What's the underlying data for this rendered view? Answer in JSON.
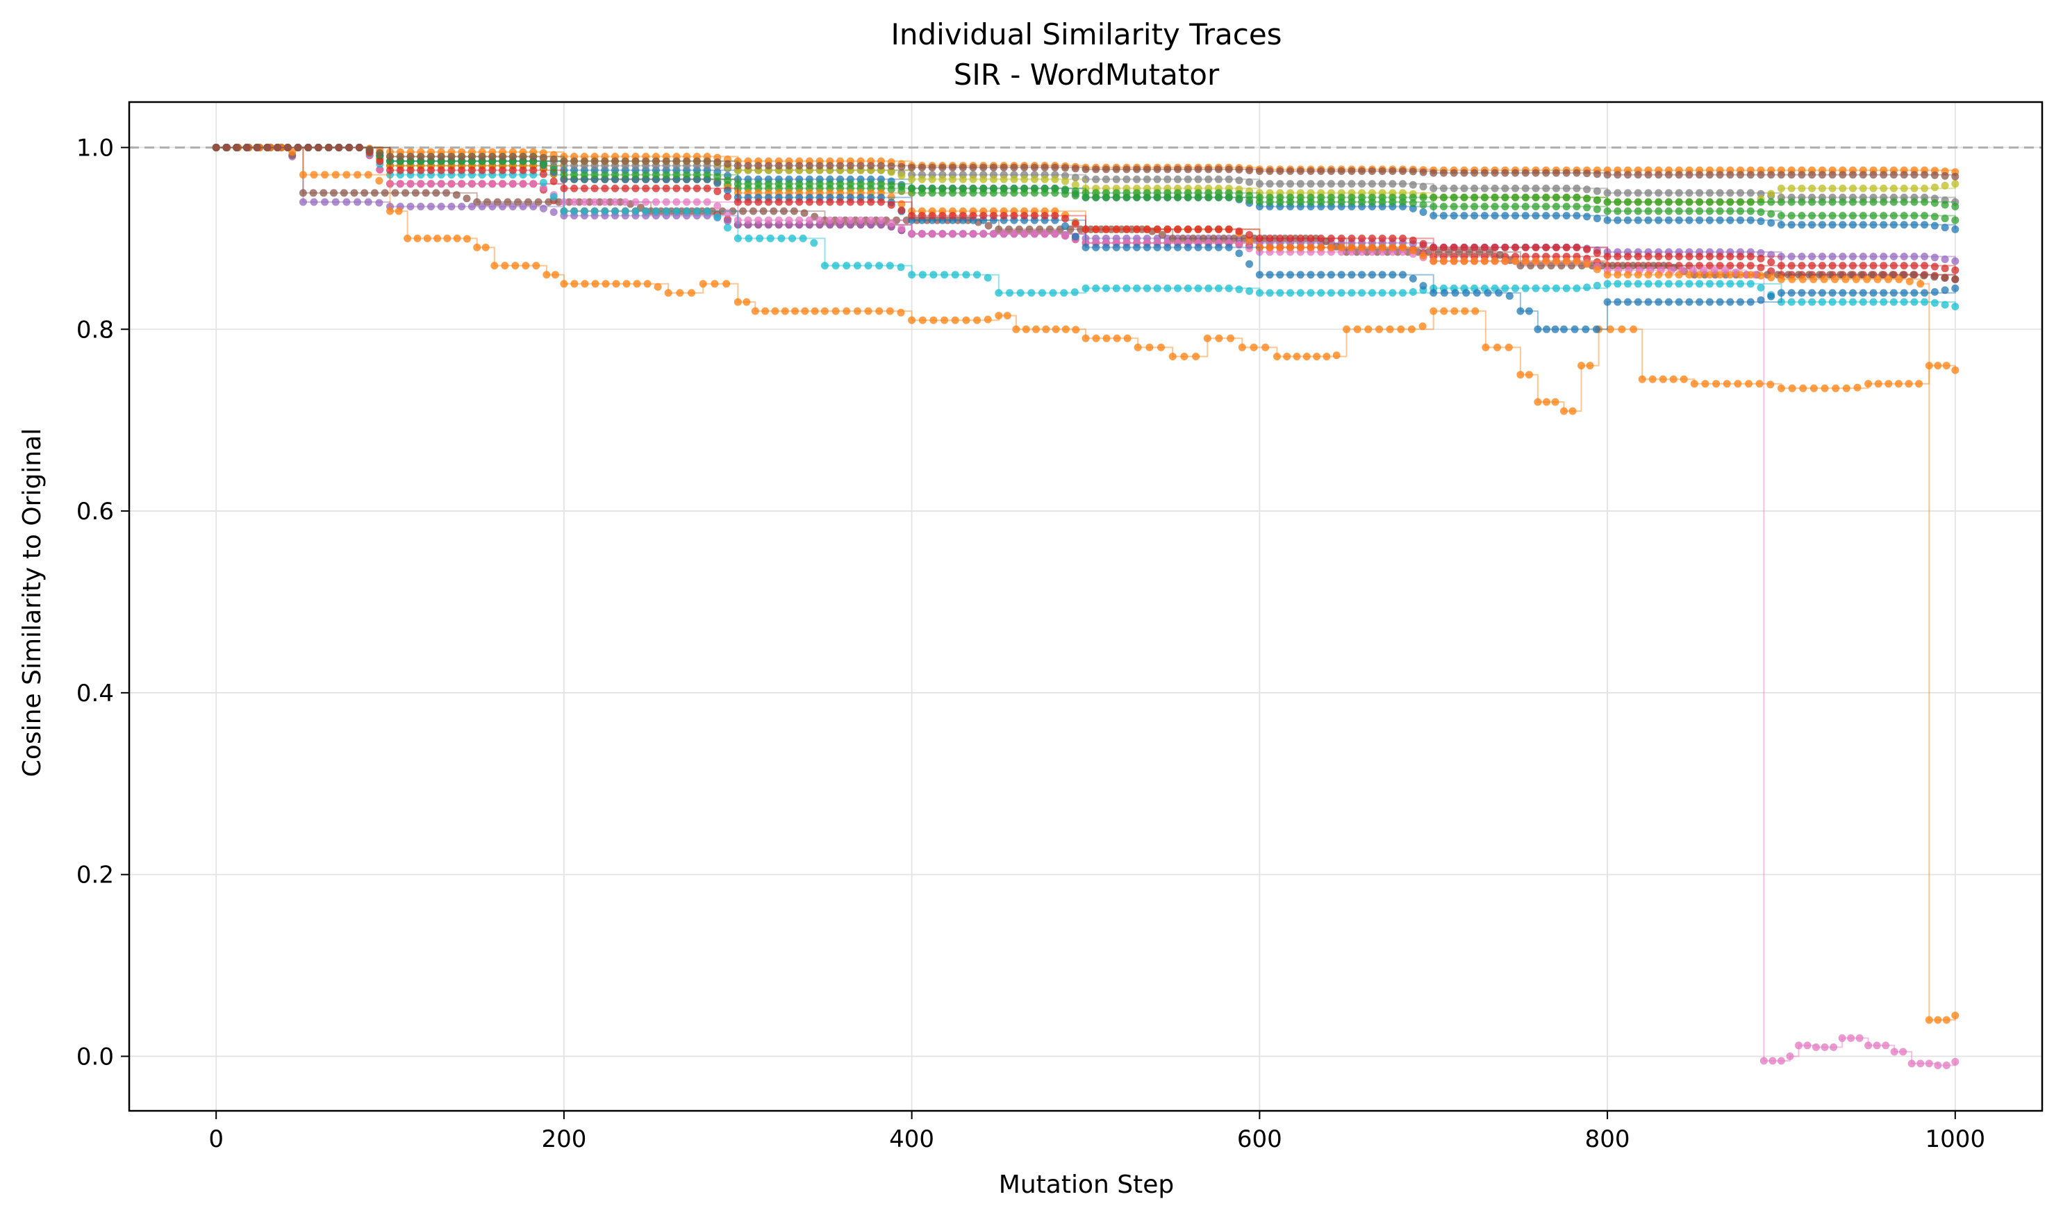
{
  "chart_data": {
    "type": "line",
    "title": "Individual Similarity Traces",
    "subtitle": "SIR - WordMutator",
    "xlabel": "Mutation Step",
    "ylabel": "Cosine Similarity to Original",
    "xlim": [
      -50,
      1050
    ],
    "ylim": [
      -0.06,
      1.05
    ],
    "xticks": [
      0,
      200,
      400,
      600,
      800,
      1000
    ],
    "yticks": [
      0.0,
      0.2,
      0.4,
      0.6,
      0.8,
      1.0
    ],
    "xtick_labels": [
      "0",
      "200",
      "400",
      "600",
      "800",
      "1000"
    ],
    "ytick_labels": [
      "0.0",
      "0.2",
      "0.4",
      "0.6",
      "0.8",
      "1.0"
    ],
    "grid": true,
    "reference_line": {
      "y": 1.0,
      "style": "dashed",
      "color": "#b0b0b0"
    },
    "palette": [
      "#1f77b4",
      "#ff7f0e",
      "#2ca02c",
      "#d62728",
      "#9467bd",
      "#8c564b",
      "#e377c2",
      "#7f7f7f",
      "#bcbd22",
      "#17becf"
    ],
    "series": [
      {
        "color": "#1f77b4",
        "points": [
          [
            0,
            1.0
          ],
          [
            100,
            0.985
          ],
          [
            200,
            0.975
          ],
          [
            300,
            0.965
          ],
          [
            400,
            0.955
          ],
          [
            500,
            0.945
          ],
          [
            600,
            0.935
          ],
          [
            700,
            0.925
          ],
          [
            800,
            0.92
          ],
          [
            900,
            0.915
          ],
          [
            1000,
            0.91
          ]
        ]
      },
      {
        "color": "#ff7f0e",
        "points": [
          [
            0,
            1.0
          ],
          [
            100,
            0.995
          ],
          [
            200,
            0.99
          ],
          [
            300,
            0.985
          ],
          [
            400,
            0.98
          ],
          [
            500,
            0.978
          ],
          [
            600,
            0.976
          ],
          [
            700,
            0.975
          ],
          [
            800,
            0.975
          ],
          [
            900,
            0.975
          ],
          [
            1000,
            0.973
          ]
        ]
      },
      {
        "color": "#2ca02c",
        "points": [
          [
            0,
            1.0
          ],
          [
            100,
            0.98
          ],
          [
            200,
            0.965
          ],
          [
            300,
            0.955
          ],
          [
            400,
            0.95
          ],
          [
            500,
            0.945
          ],
          [
            600,
            0.94
          ],
          [
            700,
            0.935
          ],
          [
            800,
            0.93
          ],
          [
            900,
            0.925
          ],
          [
            1000,
            0.92
          ]
        ]
      },
      {
        "color": "#d62728",
        "points": [
          [
            0,
            1.0
          ],
          [
            100,
            0.96
          ],
          [
            200,
            0.93
          ],
          [
            300,
            0.915
          ],
          [
            400,
            0.905
          ],
          [
            500,
            0.895
          ],
          [
            600,
            0.89
          ],
          [
            700,
            0.88
          ],
          [
            800,
            0.87
          ],
          [
            900,
            0.86
          ],
          [
            1000,
            0.855
          ]
        ]
      },
      {
        "color": "#9467bd",
        "points": [
          [
            0,
            1.0
          ],
          [
            50,
            0.94
          ],
          [
            100,
            0.935
          ],
          [
            200,
            0.925
          ],
          [
            300,
            0.915
          ],
          [
            400,
            0.905
          ],
          [
            500,
            0.9
          ],
          [
            600,
            0.895
          ],
          [
            700,
            0.89
          ],
          [
            800,
            0.885
          ],
          [
            900,
            0.88
          ],
          [
            1000,
            0.875
          ]
        ]
      },
      {
        "color": "#8c564b",
        "points": [
          [
            0,
            1.0
          ],
          [
            50,
            0.95
          ],
          [
            150,
            0.94
          ],
          [
            250,
            0.93
          ],
          [
            350,
            0.92
          ],
          [
            450,
            0.91
          ],
          [
            550,
            0.9
          ],
          [
            650,
            0.885
          ],
          [
            750,
            0.87
          ],
          [
            850,
            0.86
          ],
          [
            1000,
            0.855
          ]
        ]
      },
      {
        "color": "#e377c2",
        "points": [
          [
            0,
            1.0
          ],
          [
            100,
            0.96
          ],
          [
            200,
            0.94
          ],
          [
            300,
            0.92
          ],
          [
            400,
            0.905
          ],
          [
            500,
            0.895
          ],
          [
            600,
            0.885
          ],
          [
            700,
            0.875
          ],
          [
            800,
            0.865
          ],
          [
            880,
            0.86
          ],
          [
            890,
            -0.005
          ],
          [
            900,
            -0.005
          ],
          [
            905,
            0.0
          ],
          [
            910,
            0.012
          ],
          [
            920,
            0.01
          ],
          [
            935,
            0.02
          ],
          [
            950,
            0.012
          ],
          [
            965,
            0.005
          ],
          [
            975,
            -0.008
          ],
          [
            990,
            -0.01
          ],
          [
            1000,
            -0.006
          ]
        ]
      },
      {
        "color": "#7f7f7f",
        "points": [
          [
            0,
            1.0
          ],
          [
            100,
            0.99
          ],
          [
            200,
            0.98
          ],
          [
            300,
            0.975
          ],
          [
            400,
            0.97
          ],
          [
            500,
            0.965
          ],
          [
            600,
            0.96
          ],
          [
            700,
            0.955
          ],
          [
            800,
            0.95
          ],
          [
            900,
            0.945
          ],
          [
            1000,
            0.94
          ]
        ]
      },
      {
        "color": "#bcbd22",
        "points": [
          [
            0,
            1.0
          ],
          [
            100,
            0.99
          ],
          [
            200,
            0.985
          ],
          [
            300,
            0.975
          ],
          [
            400,
            0.965
          ],
          [
            500,
            0.955
          ],
          [
            600,
            0.95
          ],
          [
            700,
            0.945
          ],
          [
            800,
            0.94
          ],
          [
            900,
            0.955
          ],
          [
            1000,
            0.96
          ]
        ]
      },
      {
        "color": "#17becf",
        "points": [
          [
            0,
            1.0
          ],
          [
            100,
            0.97
          ],
          [
            200,
            0.93
          ],
          [
            300,
            0.9
          ],
          [
            350,
            0.87
          ],
          [
            400,
            0.86
          ],
          [
            450,
            0.84
          ],
          [
            500,
            0.845
          ],
          [
            600,
            0.84
          ],
          [
            700,
            0.845
          ],
          [
            800,
            0.85
          ],
          [
            900,
            0.83
          ],
          [
            1000,
            0.825
          ]
        ]
      },
      {
        "color": "#ff7f0e",
        "points": [
          [
            0,
            1.0
          ],
          [
            50,
            0.97
          ],
          [
            100,
            0.93
          ],
          [
            110,
            0.9
          ],
          [
            150,
            0.89
          ],
          [
            160,
            0.87
          ],
          [
            190,
            0.86
          ],
          [
            200,
            0.85
          ],
          [
            260,
            0.84
          ],
          [
            280,
            0.85
          ],
          [
            300,
            0.83
          ],
          [
            310,
            0.82
          ],
          [
            350,
            0.82
          ],
          [
            400,
            0.81
          ],
          [
            450,
            0.815
          ],
          [
            460,
            0.8
          ],
          [
            500,
            0.79
          ],
          [
            530,
            0.78
          ],
          [
            550,
            0.77
          ],
          [
            570,
            0.79
          ],
          [
            590,
            0.78
          ],
          [
            610,
            0.77
          ],
          [
            650,
            0.8
          ],
          [
            700,
            0.82
          ],
          [
            730,
            0.78
          ],
          [
            750,
            0.75
          ],
          [
            760,
            0.72
          ],
          [
            775,
            0.71
          ],
          [
            785,
            0.76
          ],
          [
            795,
            0.8
          ],
          [
            815,
            0.8
          ],
          [
            820,
            0.745
          ],
          [
            850,
            0.74
          ],
          [
            900,
            0.735
          ],
          [
            950,
            0.74
          ],
          [
            985,
            0.76
          ],
          [
            1000,
            0.755
          ]
        ]
      },
      {
        "color": "#ff7f0e",
        "points": [
          [
            0,
            1.0
          ],
          [
            100,
            0.98
          ],
          [
            200,
            0.965
          ],
          [
            300,
            0.95
          ],
          [
            400,
            0.93
          ],
          [
            500,
            0.91
          ],
          [
            600,
            0.89
          ],
          [
            700,
            0.875
          ],
          [
            800,
            0.86
          ],
          [
            900,
            0.855
          ],
          [
            980,
            0.85
          ],
          [
            985,
            0.04
          ],
          [
            1000,
            0.045
          ]
        ]
      },
      {
        "color": "#1f77b4",
        "points": [
          [
            0,
            1.0
          ],
          [
            100,
            0.985
          ],
          [
            200,
            0.965
          ],
          [
            300,
            0.945
          ],
          [
            400,
            0.92
          ],
          [
            500,
            0.89
          ],
          [
            600,
            0.86
          ],
          [
            700,
            0.84
          ],
          [
            750,
            0.82
          ],
          [
            760,
            0.8
          ],
          [
            775,
            0.8
          ],
          [
            800,
            0.83
          ],
          [
            900,
            0.84
          ],
          [
            1000,
            0.845
          ]
        ]
      },
      {
        "color": "#2ca02c",
        "points": [
          [
            0,
            1.0
          ],
          [
            100,
            0.985
          ],
          [
            200,
            0.97
          ],
          [
            300,
            0.96
          ],
          [
            400,
            0.955
          ],
          [
            500,
            0.95
          ],
          [
            600,
            0.945
          ],
          [
            700,
            0.945
          ],
          [
            800,
            0.94
          ],
          [
            900,
            0.94
          ],
          [
            1000,
            0.935
          ]
        ]
      },
      {
        "color": "#d62728",
        "points": [
          [
            0,
            1.0
          ],
          [
            100,
            0.975
          ],
          [
            200,
            0.955
          ],
          [
            300,
            0.94
          ],
          [
            400,
            0.925
          ],
          [
            500,
            0.91
          ],
          [
            600,
            0.9
          ],
          [
            700,
            0.89
          ],
          [
            800,
            0.88
          ],
          [
            900,
            0.87
          ],
          [
            1000,
            0.865
          ]
        ]
      },
      {
        "color": "#8c564b",
        "points": [
          [
            0,
            1.0
          ],
          [
            100,
            0.99
          ],
          [
            200,
            0.985
          ],
          [
            300,
            0.98
          ],
          [
            400,
            0.978
          ],
          [
            500,
            0.976
          ],
          [
            600,
            0.974
          ],
          [
            700,
            0.972
          ],
          [
            800,
            0.97
          ],
          [
            900,
            0.97
          ],
          [
            1000,
            0.968
          ]
        ]
      }
    ]
  }
}
